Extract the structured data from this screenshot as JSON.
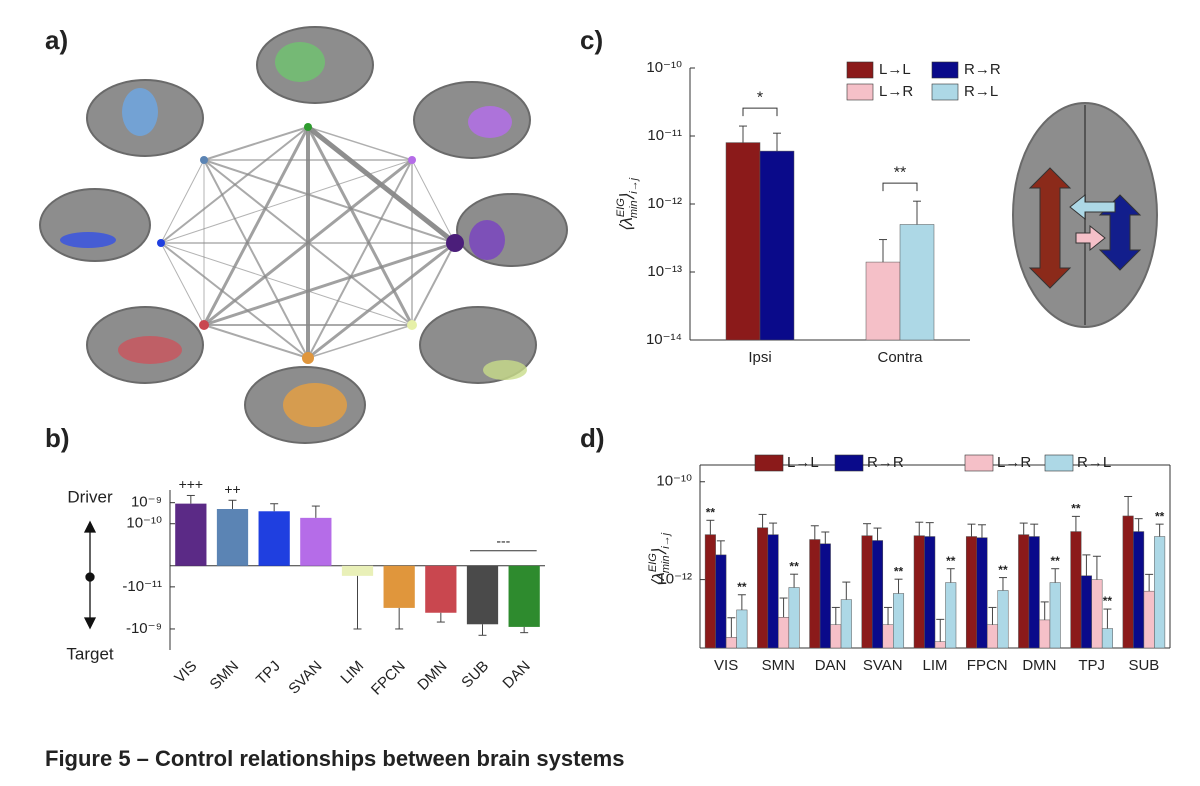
{
  "panel_labels": [
    "a)",
    "b)",
    "c)",
    "d)"
  ],
  "caption": "Figure 5 – Control relationships between brain systems",
  "chart_data": [
    {
      "type": "bar",
      "yscale": "symlog",
      "linthresh": 1e-12,
      "ylabel_top": "Driver",
      "ylabel_bottom": "Target",
      "categories": [
        "VIS",
        "SMN",
        "TPJ",
        "SVAN",
        "LIM",
        "FPCN",
        "DMN",
        "SUB",
        "DAN"
      ],
      "values": [
        9e-10,
        5e-10,
        3.9e-10,
        1.9e-10,
        -3e-12,
        -1e-10,
        -1.7e-10,
        -6e-10,
        -8e-10
      ],
      "errors": [
        1.3e-09,
        8e-10,
        5e-10,
        5e-10,
        1e-09,
        9e-10,
        3e-10,
        1.4e-09,
        7e-10
      ],
      "colors": [
        "#5b2a86",
        "#5b84b4",
        "#1f3fe0",
        "#b56ce8",
        "#e9f0b8",
        "#e0963c",
        "#c9474f",
        "#4a4a4a",
        "#2e8b2e"
      ],
      "value_annotations": [
        "+++",
        "++",
        null,
        null,
        null,
        null,
        null,
        "---",
        null
      ],
      "ylim": [
        -1e-08,
        4e-09
      ],
      "yticks": [
        {
          "value": 1e-09,
          "label": "10⁻⁹"
        },
        {
          "value": 1e-10,
          "label": "10⁻¹⁰"
        },
        {
          "value": -1e-11,
          "label": "-10⁻¹¹"
        },
        {
          "value": -1e-09,
          "label": "-10⁻⁹"
        }
      ]
    },
    {
      "type": "bar",
      "yscale": "log",
      "ylabel": [
        {
          "text": "⟨λ"
        },
        {
          "text": "EIG",
          "pos": "sup"
        },
        {
          "text": "min",
          "pos": "sub"
        },
        {
          "text": "⟩"
        },
        {
          "text": "i→j",
          "pos": "sub"
        }
      ],
      "categories": [
        "Ipsi",
        "Contra"
      ],
      "series": [
        {
          "name": "L→L",
          "color": "#8b1a1a",
          "values": [
            8e-12,
            null
          ],
          "errors": [
            6e-12,
            null
          ]
        },
        {
          "name": "R→R",
          "color": "#0a0a8a",
          "values": [
            6e-12,
            null
          ],
          "errors": [
            5e-12,
            null
          ]
        },
        {
          "name": "L→R",
          "color": "#f5c0c8",
          "values": [
            null,
            1.4e-13
          ],
          "errors": [
            null,
            1.6e-13
          ]
        },
        {
          "name": "R→L",
          "color": "#add8e6",
          "values": [
            null,
            5e-13
          ],
          "errors": [
            null,
            6e-13
          ]
        }
      ],
      "category_annotations": [
        "*",
        "**"
      ],
      "ylim": [
        1e-14,
        1e-10
      ],
      "yticks": [
        {
          "value": 1e-10,
          "label": "10⁻¹⁰"
        },
        {
          "value": 1e-11,
          "label": "10⁻¹¹"
        },
        {
          "value": 1e-12,
          "label": "10⁻¹²"
        },
        {
          "value": 1e-13,
          "label": "10⁻¹³"
        },
        {
          "value": 1e-14,
          "label": "10⁻¹⁴"
        }
      ],
      "legend": "upper right"
    },
    {
      "type": "bar",
      "yscale": "log",
      "ylabel": [
        {
          "text": "⟨λ"
        },
        {
          "text": "EIG",
          "pos": "sup"
        },
        {
          "text": "min",
          "pos": "sub"
        },
        {
          "text": "⟩"
        },
        {
          "text": "i→j",
          "pos": "sub"
        }
      ],
      "categories": [
        "VIS",
        "SMN",
        "DAN",
        "SVAN",
        "LIM",
        "FPCN",
        "DMN",
        "TPJ",
        "SUB"
      ],
      "series": [
        {
          "name": "L→L",
          "color": "#8b1a1a",
          "values": [
            8.3e-12,
            1.15e-11,
            6.6e-12,
            7.9e-12,
            7.9e-12,
            7.6e-12,
            8.3e-12,
            9.6e-12,
            2e-11
          ],
          "errors": [
            8e-12,
            1e-11,
            6e-12,
            6e-12,
            7e-12,
            6e-12,
            6e-12,
            1e-11,
            3e-11
          ],
          "annotations": [
            "**",
            null,
            null,
            null,
            null,
            null,
            null,
            "**",
            null
          ]
        },
        {
          "name": "R→R",
          "color": "#0a0a8a",
          "values": [
            3.2e-12,
            8.3e-12,
            5.4e-12,
            6.3e-12,
            7.6e-12,
            7.2e-12,
            7.6e-12,
            1.2e-12,
            9.6e-12
          ],
          "errors": [
            3e-12,
            6e-12,
            4e-12,
            5e-12,
            7e-12,
            6e-12,
            6e-12,
            2e-12,
            8e-12
          ],
          "annotations": [
            null,
            null,
            null,
            null,
            null,
            null,
            null,
            null,
            null
          ]
        },
        {
          "name": "L→R",
          "color": "#f5c0c8",
          "values": [
            6.6e-14,
            1.7e-13,
            1.2e-13,
            1.2e-13,
            5.4e-14,
            1.2e-13,
            1.5e-13,
            1e-12,
            5.8e-13
          ],
          "errors": [
            1e-13,
            2.5e-13,
            1.5e-13,
            1.5e-13,
            1e-13,
            1.5e-13,
            2e-13,
            2e-12,
            7e-13
          ],
          "annotations": [
            null,
            null,
            null,
            null,
            null,
            null,
            null,
            null,
            null
          ]
        },
        {
          "name": "R→L",
          "color": "#add8e6",
          "values": [
            2.4e-13,
            6.9e-13,
            3.9e-13,
            5.2e-13,
            8.7e-13,
            6e-13,
            8.7e-13,
            1e-13,
            7.6e-12
          ],
          "errors": [
            2.5e-13,
            6e-13,
            5e-13,
            5e-13,
            8e-13,
            5e-13,
            8e-13,
            1.5e-13,
            6e-12
          ],
          "annotations": [
            "**",
            "**",
            null,
            "**",
            "**",
            "**",
            "**",
            "**",
            "**"
          ]
        }
      ],
      "ylim": [
        4e-14,
        2.2e-10
      ],
      "yticks": [
        {
          "value": 1e-10,
          "label": "10⁻¹⁰"
        },
        {
          "value": 1e-12,
          "label": "10⁻¹²"
        }
      ],
      "legend": "top"
    }
  ]
}
